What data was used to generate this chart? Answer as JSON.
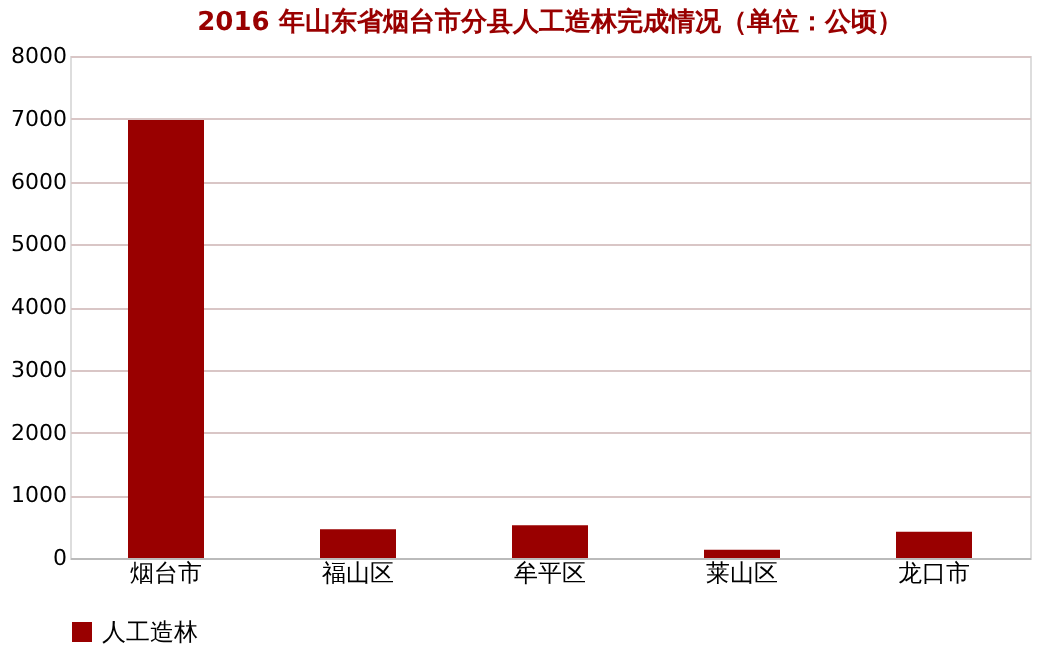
{
  "chart_data": {
    "type": "bar",
    "title": "2016 年山东省烟台市分县人工造林完成情况（单位：公顷）",
    "categories": [
      "烟台市",
      "福山区",
      "牟平区",
      "莱山区",
      "龙口市"
    ],
    "series": [
      {
        "name": "人工造林",
        "color": "#990000",
        "values": [
          6980,
          460,
          520,
          130,
          420
        ]
      }
    ],
    "ylim": [
      0,
      8000
    ],
    "yticks": [
      0,
      1000,
      2000,
      3000,
      4000,
      5000,
      6000,
      7000,
      8000
    ],
    "grid": "y",
    "legend": "bottom"
  }
}
